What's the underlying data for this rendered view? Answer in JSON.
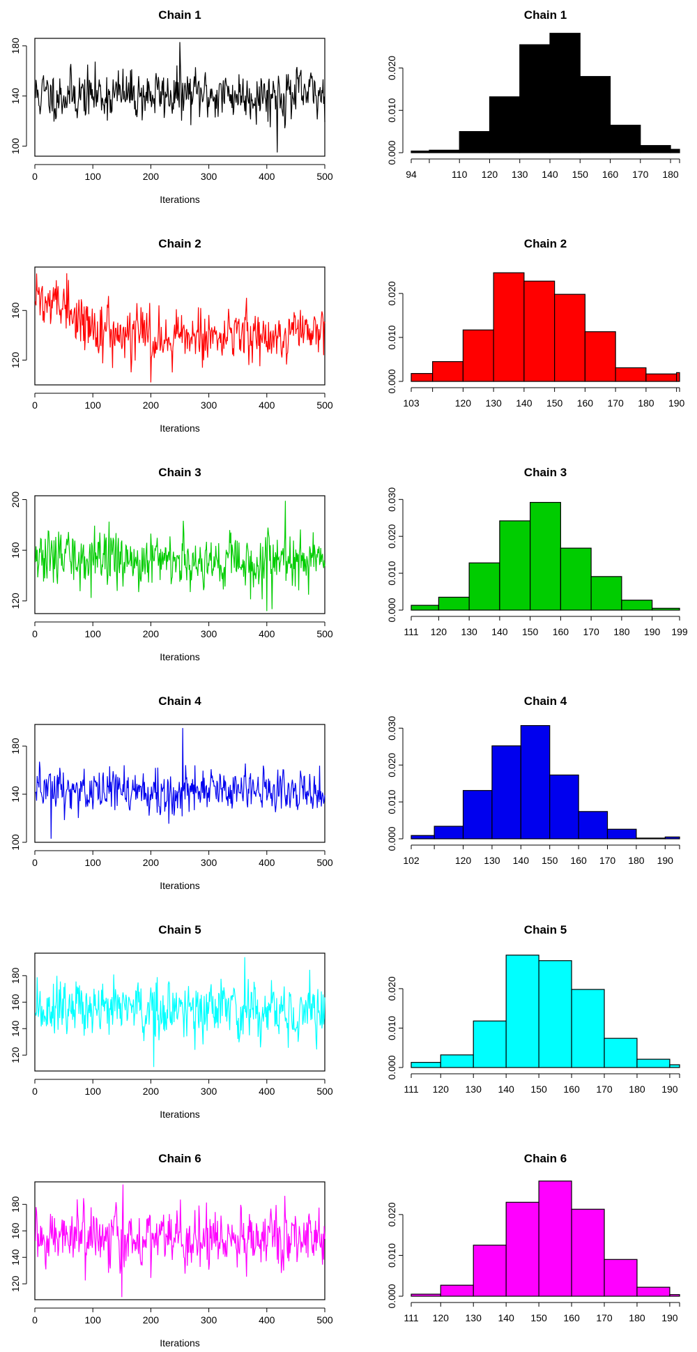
{
  "chart_data": [
    {
      "type": "line",
      "title": "Chain 1",
      "xlabel": "Iterations",
      "ylabel": "",
      "color": "#000000",
      "xlim": [
        0,
        500
      ],
      "ylim": [
        92,
        186
      ],
      "xticks": [
        "0",
        "100",
        "200",
        "300",
        "400",
        "500"
      ],
      "yticks": [
        "100",
        "140",
        "180"
      ],
      "seed": 11,
      "mean": 141,
      "sd": 13,
      "spikes": [
        [
          250,
          183
        ],
        [
          418,
          95
        ]
      ]
    },
    {
      "type": "bar",
      "title": "Chain 1",
      "xlabel": "",
      "ylabel": "",
      "color": "#000000",
      "xlim": [
        94,
        183
      ],
      "ylim": [
        0,
        0.027
      ],
      "xticks": [
        "94",
        "110",
        "120",
        "130",
        "140",
        "150",
        "160",
        "170",
        "180"
      ],
      "yticks": [
        "0.000",
        "0.010",
        "0.020"
      ],
      "bins": [
        [
          94,
          100,
          0.0004
        ],
        [
          100,
          110,
          0.0006
        ],
        [
          110,
          120,
          0.005
        ],
        [
          120,
          130,
          0.0132
        ],
        [
          130,
          140,
          0.0255
        ],
        [
          140,
          150,
          0.0282
        ],
        [
          150,
          160,
          0.018
        ],
        [
          160,
          170,
          0.0065
        ],
        [
          170,
          180,
          0.0017
        ],
        [
          180,
          183,
          0.0008
        ]
      ]
    },
    {
      "type": "line",
      "title": "Chain 2",
      "xlabel": "Iterations",
      "ylabel": "",
      "color": "#ff0000",
      "xlim": [
        0,
        500
      ],
      "ylim": [
        100,
        195
      ],
      "xticks": [
        "0",
        "100",
        "200",
        "300",
        "400",
        "500"
      ],
      "yticks": [
        "120",
        "160"
      ],
      "seed": 22,
      "mean": 142,
      "sd": 13,
      "trend": [
        170,
        140
      ],
      "spikes": [
        [
          55,
          190
        ],
        [
          200,
          102
        ]
      ]
    },
    {
      "type": "bar",
      "title": "Chain 2",
      "xlabel": "",
      "ylabel": "",
      "color": "#ff0000",
      "xlim": [
        103,
        191
      ],
      "ylim": [
        0,
        0.026
      ],
      "xticks": [
        "103",
        "120",
        "130",
        "140",
        "150",
        "160",
        "170",
        "180",
        "190"
      ],
      "yticks": [
        "0.000",
        "0.010",
        "0.020"
      ],
      "bins": [
        [
          103,
          110,
          0.0018
        ],
        [
          110,
          120,
          0.0045
        ],
        [
          120,
          130,
          0.0117
        ],
        [
          130,
          140,
          0.0247
        ],
        [
          140,
          150,
          0.0228
        ],
        [
          150,
          160,
          0.0198
        ],
        [
          160,
          170,
          0.0113
        ],
        [
          170,
          180,
          0.0031
        ],
        [
          180,
          190,
          0.0017
        ],
        [
          190,
          191,
          0.002
        ]
      ]
    },
    {
      "type": "line",
      "title": "Chain 3",
      "xlabel": "Iterations",
      "ylabel": "",
      "color": "#00cc00",
      "xlim": [
        0,
        500
      ],
      "ylim": [
        110,
        203
      ],
      "xticks": [
        "0",
        "100",
        "200",
        "300",
        "400",
        "500"
      ],
      "yticks": [
        "120",
        "160",
        "200"
      ],
      "seed": 33,
      "mean": 153,
      "sd": 14,
      "spikes": [
        [
          432,
          199
        ],
        [
          400,
          112
        ]
      ]
    },
    {
      "type": "bar",
      "title": "Chain 3",
      "xlabel": "",
      "ylabel": "",
      "color": "#00cc00",
      "xlim": [
        111,
        199
      ],
      "ylim": [
        0,
        0.031
      ],
      "xticks": [
        "111",
        "120",
        "130",
        "140",
        "150",
        "160",
        "170",
        "180",
        "190",
        "199"
      ],
      "yticks": [
        "0.000",
        "0.010",
        "0.020",
        "0.030"
      ],
      "bins": [
        [
          111,
          120,
          0.0013
        ],
        [
          120,
          130,
          0.0035
        ],
        [
          130,
          140,
          0.0128
        ],
        [
          140,
          150,
          0.0242
        ],
        [
          150,
          160,
          0.0292
        ],
        [
          160,
          170,
          0.0168
        ],
        [
          170,
          180,
          0.0091
        ],
        [
          180,
          190,
          0.0027
        ],
        [
          190,
          199,
          0.0005
        ]
      ]
    },
    {
      "type": "line",
      "title": "Chain 4",
      "xlabel": "Iterations",
      "ylabel": "",
      "color": "#0000ee",
      "xlim": [
        0,
        500
      ],
      "ylim": [
        100,
        198
      ],
      "xticks": [
        "0",
        "100",
        "200",
        "300",
        "400",
        "500"
      ],
      "yticks": [
        "100",
        "140",
        "180"
      ],
      "seed": 44,
      "mean": 143,
      "sd": 13,
      "spikes": [
        [
          255,
          195
        ],
        [
          28,
          103
        ]
      ]
    },
    {
      "type": "bar",
      "title": "Chain 4",
      "xlabel": "",
      "ylabel": "",
      "color": "#0000ee",
      "xlim": [
        102,
        195
      ],
      "ylim": [
        0,
        0.031
      ],
      "xticks": [
        "102",
        "120",
        "130",
        "140",
        "150",
        "160",
        "170",
        "180",
        "190"
      ],
      "yticks": [
        "0.000",
        "0.010",
        "0.020",
        "0.030"
      ],
      "bins": [
        [
          102,
          110,
          0.0009
        ],
        [
          110,
          120,
          0.0034
        ],
        [
          120,
          130,
          0.0131
        ],
        [
          130,
          140,
          0.0252
        ],
        [
          140,
          150,
          0.0307
        ],
        [
          150,
          160,
          0.0173
        ],
        [
          160,
          170,
          0.0074
        ],
        [
          170,
          180,
          0.0026
        ],
        [
          180,
          190,
          0.0002
        ],
        [
          190,
          195,
          0.0005
        ]
      ]
    },
    {
      "type": "line",
      "title": "Chain 5",
      "xlabel": "Iterations",
      "ylabel": "",
      "color": "#00ffff",
      "xlim": [
        0,
        500
      ],
      "ylim": [
        108,
        197
      ],
      "xticks": [
        "0",
        "100",
        "200",
        "300",
        "400",
        "500"
      ],
      "yticks": [
        "120",
        "140",
        "160",
        "180"
      ],
      "seed": 55,
      "mean": 154,
      "sd": 14,
      "spikes": [
        [
          362,
          194
        ],
        [
          205,
          111
        ]
      ]
    },
    {
      "type": "bar",
      "title": "Chain 5",
      "xlabel": "",
      "ylabel": "",
      "color": "#00ffff",
      "xlim": [
        111,
        193
      ],
      "ylim": [
        0,
        0.029
      ],
      "xticks": [
        "111",
        "120",
        "130",
        "140",
        "150",
        "160",
        "170",
        "180",
        "190"
      ],
      "yticks": [
        "0.000",
        "0.010",
        "0.020"
      ],
      "bins": [
        [
          111,
          120,
          0.0013
        ],
        [
          120,
          130,
          0.0032
        ],
        [
          130,
          140,
          0.0118
        ],
        [
          140,
          150,
          0.0285
        ],
        [
          150,
          160,
          0.0271
        ],
        [
          160,
          170,
          0.0198
        ],
        [
          170,
          180,
          0.0074
        ],
        [
          180,
          190,
          0.0021
        ],
        [
          190,
          193,
          0.0007
        ]
      ]
    },
    {
      "type": "line",
      "title": "Chain 6",
      "xlabel": "Iterations",
      "ylabel": "",
      "color": "#ff00ff",
      "xlim": [
        0,
        500
      ],
      "ylim": [
        108,
        197
      ],
      "xticks": [
        "0",
        "100",
        "200",
        "300",
        "400",
        "500"
      ],
      "yticks": [
        "120",
        "140",
        "160",
        "180"
      ],
      "seed": 66,
      "mean": 154,
      "sd": 14,
      "spikes": [
        [
          152,
          195
        ],
        [
          150,
          110
        ]
      ]
    },
    {
      "type": "bar",
      "title": "Chain 6",
      "xlabel": "",
      "ylabel": "",
      "color": "#ff00ff",
      "xlim": [
        111,
        193
      ],
      "ylim": [
        0,
        0.028
      ],
      "xticks": [
        "111",
        "120",
        "130",
        "140",
        "150",
        "160",
        "170",
        "180",
        "190"
      ],
      "yticks": [
        "0.000",
        "0.010",
        "0.020"
      ],
      "bins": [
        [
          111,
          120,
          0.0005
        ],
        [
          120,
          130,
          0.0027
        ],
        [
          130,
          140,
          0.0125
        ],
        [
          140,
          150,
          0.023
        ],
        [
          150,
          160,
          0.0282
        ],
        [
          160,
          170,
          0.0213
        ],
        [
          170,
          180,
          0.009
        ],
        [
          180,
          190,
          0.0022
        ],
        [
          190,
          193,
          0.0004
        ]
      ]
    }
  ]
}
